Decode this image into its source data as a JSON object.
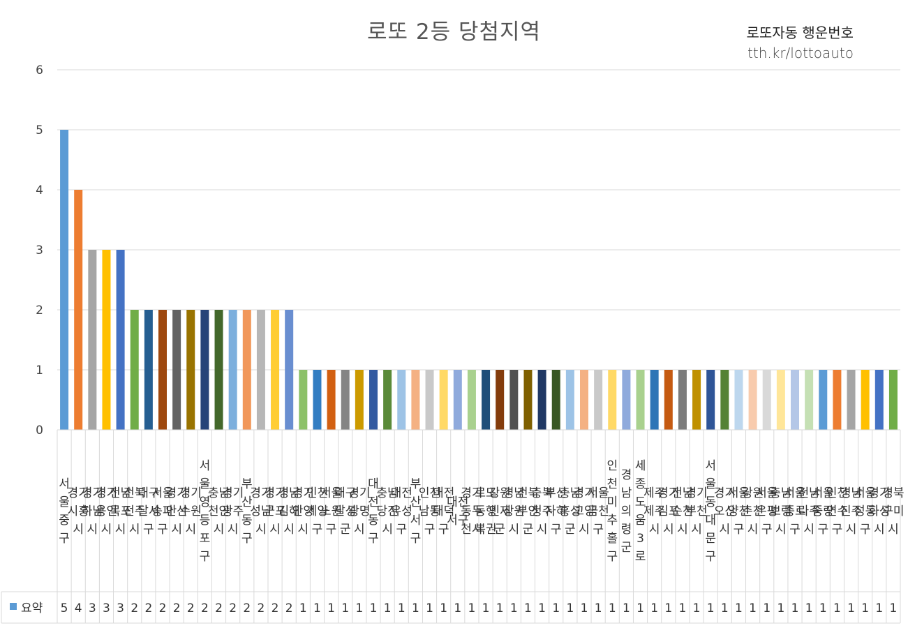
{
  "header": {
    "title": "로또 2등 당첨지역",
    "brand_name": "로또자동 행운번호",
    "brand_url": "tth.kr/lottoauto"
  },
  "chart_data": {
    "type": "bar",
    "title": "로또 2등 당첨지역",
    "ylim": [
      0,
      6
    ],
    "yticks": [
      0,
      1,
      2,
      3,
      4,
      5,
      6
    ],
    "grid": true,
    "legend": "data-table-left",
    "categories": [
      "서울중구",
      "경기시흥시",
      "경기하남시",
      "경기용인시",
      "전남목포시",
      "전북전주시",
      "대구달서구",
      "서울송파구",
      "경기안산시",
      "경기수원시",
      "서울영등포구",
      "충남천안시",
      "경기광주시",
      "부산동구",
      "경기성남시",
      "경기군포시",
      "경남김해시",
      "경기안양시",
      "인천계양구",
      "서울노원구",
      "대구달성군",
      "경기광명시",
      "대전동구",
      "충남당진시",
      "대전유성구",
      "부산서구",
      "인천남동구",
      "대전대덕구",
      "대전서구",
      "경기동두천시",
      "로또동행복권",
      "강원인제군",
      "경남창원시",
      "전북부안군",
      "충북청주시",
      "부산사하구",
      "충남홍성군",
      "경기고양시",
      "서울금천구",
      "인천미추홀구",
      "경남의령군",
      "세종도움3로",
      "제주제주시",
      "경기김포시",
      "전남순천시",
      "경기부천시",
      "서울동대문구",
      "경기오산시",
      "서울양천구",
      "강원춘천시",
      "서울은평구",
      "충남보령시",
      "서울종로구",
      "전남나주시",
      "서울중랑구",
      "인천연수구",
      "경남진주시",
      "서울성동구",
      "경기화성시",
      "경북구미시"
    ],
    "category_lines": [
      [
        "서",
        "울",
        "중",
        "구"
      ],
      [
        "경기",
        "시흥",
        "시"
      ],
      [
        "경기",
        "하남",
        "시"
      ],
      [
        "경기",
        "용인",
        "시"
      ],
      [
        "전남",
        "목포",
        "시"
      ],
      [
        "전북",
        "전주",
        "시"
      ],
      [
        "대구",
        "달서",
        "구"
      ],
      [
        "서울",
        "송파",
        "구"
      ],
      [
        "경기",
        "안산",
        "시"
      ],
      [
        "경기",
        "수원",
        "시"
      ],
      [
        "서",
        "울",
        "영",
        "등",
        "포",
        "구"
      ],
      [
        "충남",
        "천안",
        "시"
      ],
      [
        "경기",
        "광주",
        "시"
      ],
      [
        "부",
        "산",
        "동",
        "구"
      ],
      [
        "경기",
        "성남",
        "시"
      ],
      [
        "경기",
        "군포",
        "시"
      ],
      [
        "경남",
        "김해",
        "시"
      ],
      [
        "경기",
        "안양",
        "시"
      ],
      [
        "인천",
        "계양",
        "구"
      ],
      [
        "서울",
        "노원",
        "구"
      ],
      [
        "대구",
        "달성",
        "군"
      ],
      [
        "경기",
        "광명",
        "시"
      ],
      [
        "대",
        "전",
        "동",
        "구"
      ],
      [
        "충남",
        "당진",
        "시"
      ],
      [
        "대전",
        "유성",
        "구"
      ],
      [
        "부",
        "산",
        "서",
        "구"
      ],
      [
        "인천",
        "남동",
        "구"
      ],
      [
        "대전",
        "대덕",
        "구"
      ],
      [
        "대전",
        "서구"
      ],
      [
        "경기",
        "동두",
        "천시"
      ],
      [
        "로또",
        "동행",
        "복권"
      ],
      [
        "강원",
        "인제",
        "군"
      ],
      [
        "경남",
        "창원",
        "시"
      ],
      [
        "전북",
        "부안",
        "군"
      ],
      [
        "충북",
        "청주",
        "시"
      ],
      [
        "부산",
        "사하",
        "구"
      ],
      [
        "충남",
        "홍성",
        "군"
      ],
      [
        "경기",
        "고양",
        "시"
      ],
      [
        "서울",
        "금천",
        "구"
      ],
      [
        "인",
        "천",
        "미",
        "추",
        "홀",
        "구"
      ],
      [
        "경",
        "남",
        "의",
        "령",
        "군"
      ],
      [
        "세",
        "종",
        "도",
        "움",
        "3",
        "로"
      ],
      [
        "제주",
        "제주",
        "시"
      ],
      [
        "경기",
        "김포",
        "시"
      ],
      [
        "전남",
        "순천",
        "시"
      ],
      [
        "경기",
        "부천",
        "시"
      ],
      [
        "서",
        "울",
        "동",
        "대",
        "문",
        "구"
      ],
      [
        "경기",
        "오산",
        "시"
      ],
      [
        "서울",
        "양천",
        "구"
      ],
      [
        "강원",
        "춘천",
        "시"
      ],
      [
        "서울",
        "은평",
        "구"
      ],
      [
        "충남",
        "보령",
        "시"
      ],
      [
        "서울",
        "종로",
        "구"
      ],
      [
        "전남",
        "나주",
        "시"
      ],
      [
        "서울",
        "중랑",
        "구"
      ],
      [
        "인천",
        "연수",
        "구"
      ],
      [
        "경남",
        "진주",
        "시"
      ],
      [
        "서울",
        "성동",
        "구"
      ],
      [
        "경기",
        "화성",
        "시"
      ],
      [
        "경북",
        "구미",
        "시"
      ]
    ],
    "values": [
      5,
      4,
      3,
      3,
      3,
      2,
      2,
      2,
      2,
      2,
      2,
      2,
      2,
      2,
      2,
      2,
      2,
      1,
      1,
      1,
      1,
      1,
      1,
      1,
      1,
      1,
      1,
      1,
      1,
      1,
      1,
      1,
      1,
      1,
      1,
      1,
      1,
      1,
      1,
      1,
      1,
      1,
      1,
      1,
      1,
      1,
      1,
      1,
      1,
      1,
      1,
      1,
      1,
      1,
      1,
      1,
      1,
      1,
      1,
      1
    ],
    "colors": [
      "#5b9bd5",
      "#ed7d31",
      "#a5a5a5",
      "#ffc000",
      "#4472c4",
      "#70ad47",
      "#255e91",
      "#9e480e",
      "#636363",
      "#997300",
      "#264478",
      "#43682b",
      "#7cafdd",
      "#f1975a",
      "#b7b7b7",
      "#ffcd33",
      "#698ed0",
      "#8cc168",
      "#327dc2",
      "#d26012",
      "#848484",
      "#cc9a00",
      "#335aa1",
      "#5a8a39",
      "#9dc3e6",
      "#f4b183",
      "#c9c9c9",
      "#ffd966",
      "#8faadc",
      "#a9d18e",
      "#1f4e79",
      "#843c0c",
      "#525252",
      "#7f6000",
      "#203864",
      "#385723",
      "#9dc3e6",
      "#f4b183",
      "#c9c9c9",
      "#ffd966",
      "#8faadc",
      "#a9d18e",
      "#2e75b6",
      "#c55a11",
      "#7b7b7b",
      "#bf9000",
      "#2f5597",
      "#548235",
      "#bdd7ee",
      "#f8cbad",
      "#d9d9d9",
      "#ffe699",
      "#b4c7e7",
      "#c5e0b4",
      "#5b9bd5",
      "#ed7d31",
      "#a5a5a5",
      "#ffc000",
      "#4472c4",
      "#70ad47"
    ],
    "series": [
      {
        "name": "요약",
        "color": "#5b9bd5"
      }
    ]
  }
}
